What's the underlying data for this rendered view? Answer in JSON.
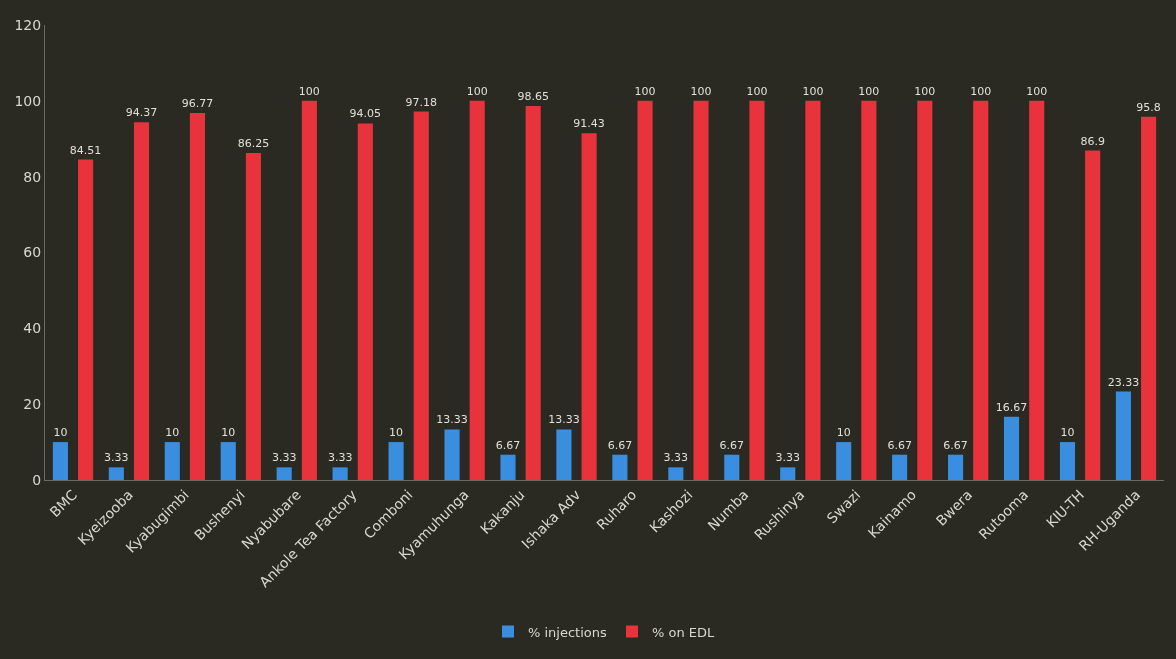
{
  "chart_data": {
    "type": "bar",
    "categories": [
      "BMC",
      "Kyeizooba",
      "Kyabugimbi",
      "Bushenyi",
      "Nyabubare",
      "Ankole Tea Factory",
      "Comboni",
      "Kyamuhunga",
      "Kakanju",
      "Ishaka Adv",
      "Ruharo",
      "Kashozi",
      "Numba",
      "Rushinya",
      "Swazi",
      "Kainamo",
      "Bwera",
      "Rutooma",
      "KIU-TH",
      "RH-Uganda"
    ],
    "series": [
      {
        "name": "% injections",
        "color": "#3a8ee0",
        "values": [
          10,
          3.33,
          10,
          10,
          3.33,
          3.33,
          10,
          13.33,
          6.67,
          13.33,
          6.67,
          3.33,
          6.67,
          3.33,
          10,
          6.67,
          6.67,
          16.67,
          10,
          23.33
        ]
      },
      {
        "name": "% on EDL",
        "color": "#e8333c",
        "values": [
          84.51,
          94.37,
          96.77,
          86.25,
          100,
          94.05,
          97.18,
          100,
          98.65,
          91.43,
          100,
          100,
          100,
          100,
          100,
          100,
          100,
          100,
          86.9,
          95.8
        ]
      }
    ],
    "ylim": [
      0,
      120
    ],
    "yticks": [
      0,
      20,
      40,
      60,
      80,
      100,
      120
    ],
    "data_labels": true,
    "grid": false,
    "legend": "bottom"
  }
}
